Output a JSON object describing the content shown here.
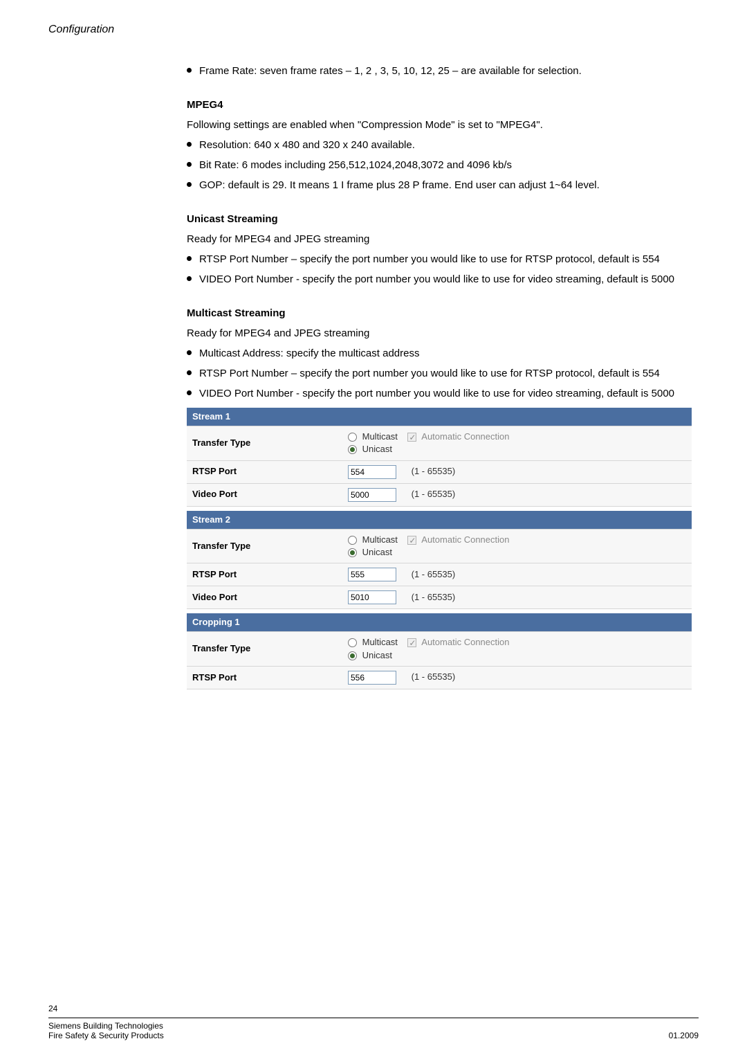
{
  "header": {
    "section": "Configuration"
  },
  "top_bullet": "Frame Rate: seven frame rates – 1, 2 , 3, 5, 10, 12, 25 – are available for selection.",
  "mpeg4": {
    "title": "MPEG4",
    "intro": "Following settings are enabled when \"Compression Mode\" is set to \"MPEG4\".",
    "items": [
      "Resolution: 640 x 480 and 320 x 240 available.",
      "Bit Rate: 6 modes including 256,512,1024,2048,3072 and 4096 kb/s",
      "GOP: default is 29. It means 1 I frame plus 28 P frame.  End user can adjust 1~64 level."
    ]
  },
  "unicast": {
    "title": "Unicast Streaming",
    "intro": "Ready for MPEG4 and JPEG streaming",
    "items": [
      "RTSP Port Number – specify the port number you would like to use for RTSP protocol, default is 554",
      "VIDEO Port Number - specify the port number you would like to use for video streaming, default is 5000"
    ]
  },
  "multicast": {
    "title": "Multicast Streaming",
    "intro": "Ready for MPEG4 and JPEG streaming",
    "items": [
      "Multicast Address: specify the multicast address",
      "RTSP Port Number – specify the port number you would like to use for RTSP protocol, default is 554",
      "VIDEO Port Number - specify the port number you would like to use for video streaming, default is 5000"
    ]
  },
  "labels": {
    "transfer_type": "Transfer Type",
    "rtsp_port": "RTSP Port",
    "video_port": "Video Port",
    "multicast": "Multicast",
    "unicast": "Unicast",
    "auto_conn": "Automatic Connection",
    "range": "(1 - 65535)"
  },
  "headers": {
    "stream1": "Stream 1",
    "stream2": "Stream 2",
    "cropping1": "Cropping 1"
  },
  "stream1": {
    "multicast_selected": false,
    "unicast_selected": true,
    "auto_conn_checked": true,
    "rtsp_port": "554",
    "video_port": "5000"
  },
  "stream2": {
    "multicast_selected": false,
    "unicast_selected": true,
    "auto_conn_checked": true,
    "rtsp_port": "555",
    "video_port": "5010"
  },
  "cropping1": {
    "multicast_selected": false,
    "unicast_selected": true,
    "auto_conn_checked": true,
    "rtsp_port": "556"
  },
  "footer": {
    "page": "24",
    "line1": "Siemens Building Technologies",
    "line2": "Fire Safety & Security Products",
    "date": "01.2009"
  },
  "colors": {
    "header_bg": "#4a6ea0",
    "row_bg": "#f7f7f7",
    "border": "#d6d6d6",
    "input_border": "#7f9db9"
  }
}
